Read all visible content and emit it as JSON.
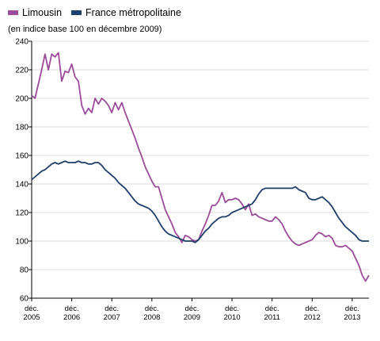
{
  "chart_data": {
    "type": "line",
    "subtitle": "(en indice base 100 en décembre 2009)",
    "ylim": [
      60,
      240
    ],
    "yticks": [
      60,
      80,
      100,
      120,
      140,
      160,
      180,
      200,
      220,
      240
    ],
    "xlim": [
      0,
      101
    ],
    "xticks": [
      {
        "x": 0,
        "label": [
          "déc.",
          "2005"
        ]
      },
      {
        "x": 12,
        "label": [
          "déc.",
          "2006"
        ]
      },
      {
        "x": 24,
        "label": [
          "déc.",
          "2007"
        ]
      },
      {
        "x": 36,
        "label": [
          "déc.",
          "2008"
        ]
      },
      {
        "x": 48,
        "label": [
          "déc.",
          "2009"
        ]
      },
      {
        "x": 60,
        "label": [
          "déc.",
          "2010"
        ]
      },
      {
        "x": 72,
        "label": [
          "déc.",
          "2011"
        ]
      },
      {
        "x": 84,
        "label": [
          "déc.",
          "2012"
        ]
      },
      {
        "x": 96,
        "label": [
          "déc.",
          "2013"
        ]
      }
    ],
    "grid": "horizontal",
    "legend_position": "top-left",
    "series": [
      {
        "name": "Limousin",
        "color": "#9c4b9a",
        "values": [
          202,
          200,
          210,
          220,
          231,
          220,
          231,
          229,
          232,
          212,
          219,
          218,
          224,
          215,
          212,
          195,
          189,
          193,
          190,
          200,
          196,
          200,
          198,
          195,
          190,
          197,
          192,
          197,
          190,
          184,
          178,
          172,
          165,
          159,
          152,
          147,
          142,
          138,
          138,
          130,
          122,
          117,
          112,
          106,
          103,
          99,
          104,
          103,
          101,
          100,
          101,
          107,
          112,
          118,
          125,
          125,
          128,
          134,
          127,
          129,
          129,
          130,
          129,
          126,
          122,
          126,
          118,
          119,
          117,
          116,
          115,
          114,
          114,
          117,
          115,
          112,
          107,
          103,
          100,
          98,
          97,
          98,
          99,
          100,
          101,
          104,
          106,
          105,
          103,
          104,
          102,
          97,
          96,
          96,
          97,
          95,
          93,
          88,
          83,
          76,
          72,
          76
        ]
      },
      {
        "name": "France métropolitaine",
        "color": "#1f3f6b",
        "values": [
          143,
          145,
          147,
          149,
          150,
          152,
          154,
          155,
          154,
          155,
          156,
          155,
          155,
          155,
          156,
          155,
          155,
          154,
          154,
          155,
          155,
          153,
          150,
          148,
          146,
          144,
          141,
          139,
          137,
          134,
          131,
          128,
          126,
          125,
          124,
          123,
          121,
          118,
          114,
          110,
          107,
          105,
          104,
          103,
          102,
          101,
          100,
          100,
          100,
          99,
          101,
          104,
          107,
          109,
          112,
          114,
          116,
          117,
          117,
          118,
          120,
          121,
          122,
          123,
          124,
          125,
          126,
          129,
          133,
          136,
          137,
          137,
          137,
          137,
          137,
          137,
          137,
          137,
          137,
          138,
          136,
          135,
          134,
          130,
          129,
          129,
          130,
          131,
          129,
          127,
          124,
          120,
          116,
          113,
          110,
          108,
          106,
          104,
          101,
          100,
          100,
          100
        ]
      }
    ]
  }
}
